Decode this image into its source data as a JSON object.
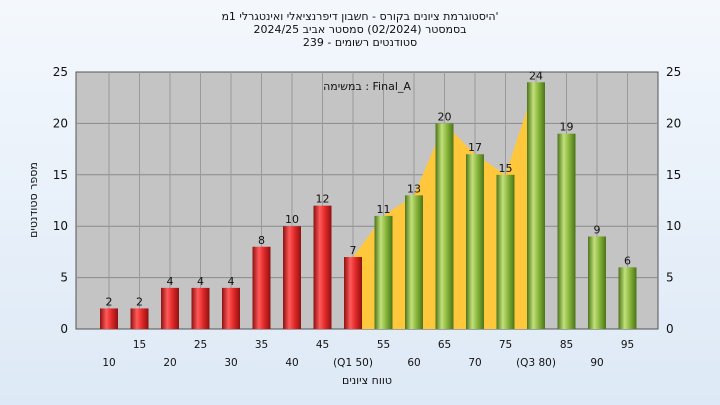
{
  "header": {
    "title_line1": "'היסטוגרמת ציונים בקורס - חשבון דיפרנציאלי ואינטגרלי 1מ",
    "title_line2": "בסמסטר  (02/2024)  סמסטר אביב 2024/25",
    "title_line3": "סטודנטים רשומים - 239"
  },
  "chart_data": {
    "type": "bar",
    "title": "'היסטוגרמת ציונים בקורס - חשבון דיפרנציאלי ואינטגרלי 1מ",
    "xlabel": "טווח ציונים",
    "ylabel": "מספר סטודנטים",
    "ylim": [
      0,
      25
    ],
    "yticks": [
      0,
      5,
      10,
      15,
      20,
      25
    ],
    "grid": true,
    "legend": "none",
    "annotation": "Final_A : במשימה",
    "categories": [
      "10",
      "15",
      "20",
      "25",
      "30",
      "35",
      "40",
      "45",
      "50",
      "55",
      "60",
      "65",
      "70",
      "75",
      "80",
      "85",
      "90",
      "95"
    ],
    "x_tick_labels": [
      "10",
      "15",
      "20",
      "25",
      "30",
      "35",
      "40",
      "45",
      "(Q1 50)",
      "55",
      "60",
      "65",
      "70",
      "75",
      "(Q3 80)",
      "85",
      "90",
      "95"
    ],
    "values": [
      2,
      2,
      4,
      4,
      4,
      8,
      10,
      12,
      7,
      11,
      13,
      20,
      17,
      15,
      24,
      19,
      9,
      6
    ],
    "data_labels": [
      "2",
      "2",
      "4",
      "4",
      "4",
      "8",
      "10",
      "12",
      "7",
      "11",
      "13",
      "20",
      "17",
      "15",
      "24",
      "19",
      "9",
      "6"
    ],
    "fail_threshold": 55,
    "colors": {
      "fail": "#e02828",
      "pass": "#86b43a",
      "iqr_area": "#ffc83c",
      "plot_bg": "#c4c4c4"
    }
  }
}
